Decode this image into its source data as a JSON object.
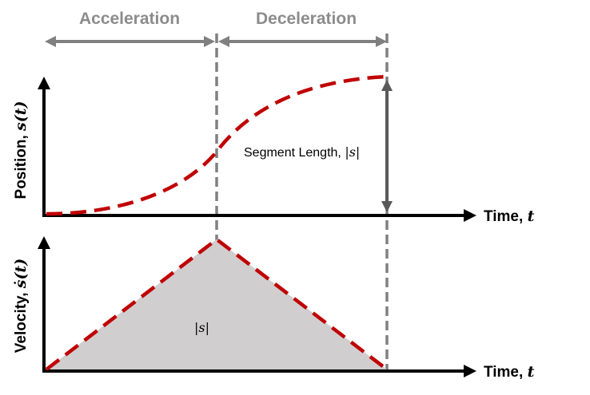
{
  "phases": {
    "acceleration": "Acceleration",
    "deceleration": "Deceleration"
  },
  "top_plot": {
    "y_label": "Position, ",
    "y_symbol": "s(t)",
    "x_label": "Time, ",
    "x_symbol": "t",
    "annotation": "Segment Length, ",
    "annotation_symbol": "|s|"
  },
  "bottom_plot": {
    "y_label": "Velocity, ",
    "y_symbol": "ṡ(t)",
    "x_label": "Time, ",
    "x_symbol": "t",
    "area_label": "|s|"
  },
  "colors": {
    "curve": "#c00000",
    "guide": "#808080",
    "fill": "#d0cecf",
    "axis": "#000000"
  }
}
